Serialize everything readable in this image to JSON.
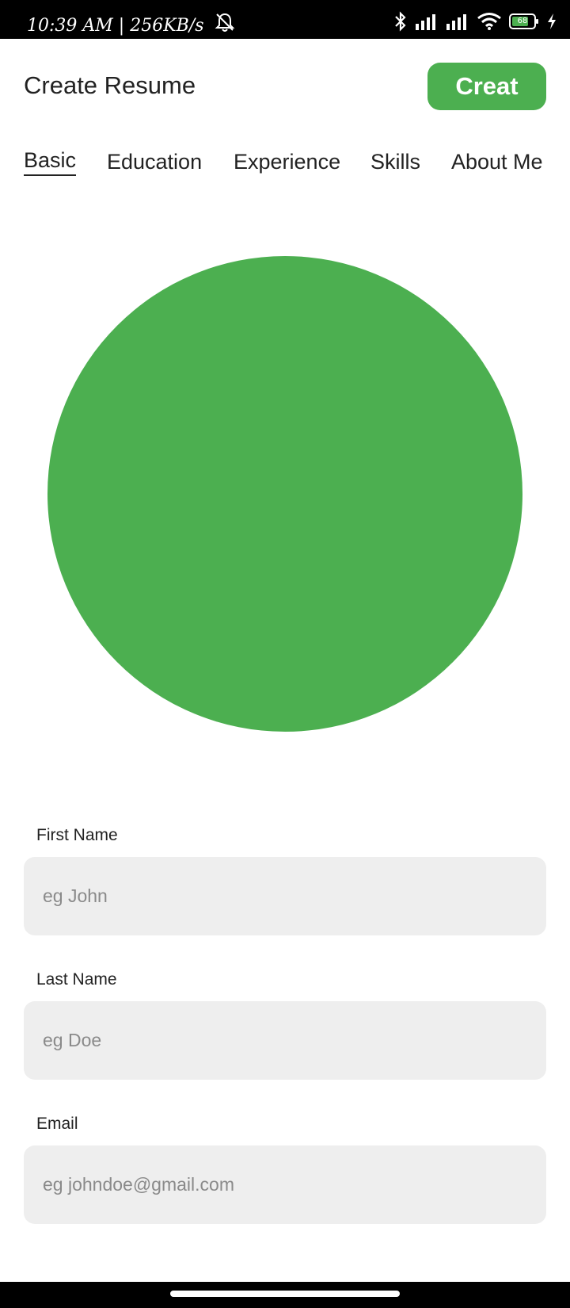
{
  "status_bar": {
    "time_text": "10:39 AM | 256KB/s",
    "battery_level": "68",
    "icons": [
      "mute-bell-icon",
      "bluetooth-icon",
      "signal-icon",
      "signal-icon",
      "wifi-icon",
      "battery-icon",
      "charging-icon"
    ]
  },
  "app_bar": {
    "title": "Create Resume",
    "create_button_label": "Creat"
  },
  "tabs": [
    {
      "label": "Basic",
      "active": true
    },
    {
      "label": "Education",
      "active": false
    },
    {
      "label": "Experience",
      "active": false
    },
    {
      "label": "Skills",
      "active": false
    },
    {
      "label": "About Me",
      "active": false
    }
  ],
  "form": {
    "first_name": {
      "label": "First Name",
      "value": "",
      "placeholder": "eg John"
    },
    "last_name": {
      "label": "Last Name",
      "value": "",
      "placeholder": "eg Doe"
    },
    "email": {
      "label": "Email",
      "value": "",
      "placeholder": "eg johndoe@gmail.com"
    }
  },
  "colors": {
    "accent": "#4caf50",
    "field_background": "#eeeeee",
    "text_primary": "#222222",
    "placeholder": "#8a8a8a"
  }
}
